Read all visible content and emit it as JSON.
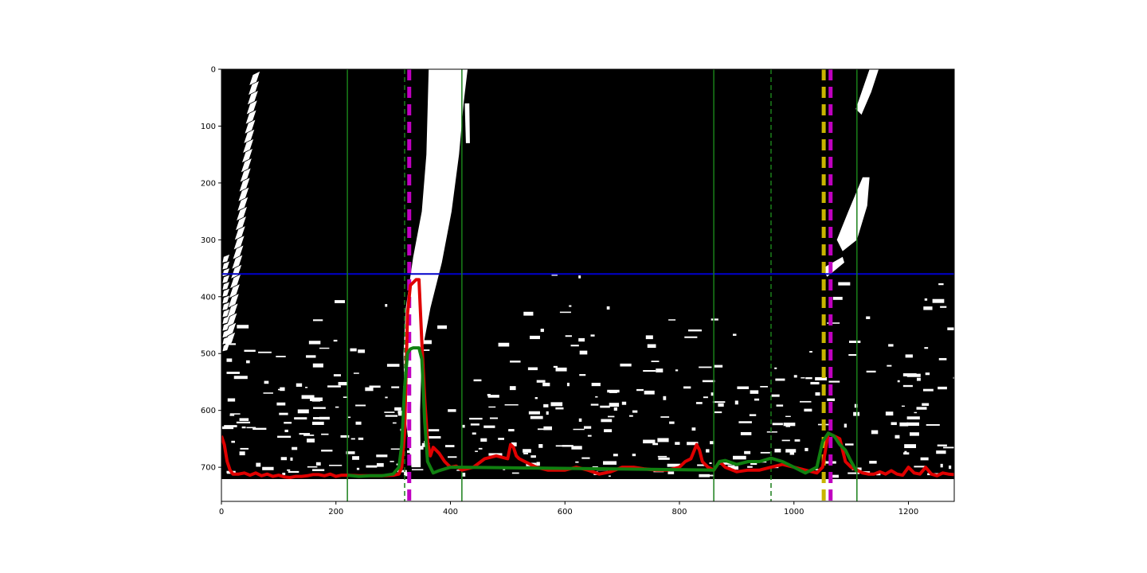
{
  "chart_data": {
    "type": "line",
    "title": "",
    "xlabel": "",
    "ylabel": "",
    "xlim": [
      0,
      1280
    ],
    "ylim": [
      760,
      0
    ],
    "image_extent": {
      "x": [
        0,
        1280
      ],
      "y": [
        720,
        0
      ]
    },
    "xticks": [
      0,
      200,
      400,
      600,
      800,
      1000,
      1200
    ],
    "yticks": [
      0,
      100,
      200,
      300,
      400,
      500,
      600,
      700
    ],
    "background": "binary lane-line threshold image (white pixels on black)",
    "horizontal_line": {
      "y": 360,
      "color": "#0000cc"
    },
    "vertical_lines_solid": {
      "x": [
        220,
        420,
        860,
        1110
      ],
      "color": "#1a7f1a"
    },
    "vertical_lines_dashed_thin": {
      "x": [
        320,
        960
      ],
      "color": "#1a7f1a"
    },
    "vertical_lines_dashed_thick": [
      {
        "x": 328,
        "color": "#c000c0"
      },
      {
        "x": 1052,
        "color": "#c8b400"
      },
      {
        "x": 1064,
        "color": "#c000c0"
      }
    ],
    "series": [
      {
        "color": "#e00000",
        "x": [
          0,
          5,
          10,
          15,
          20,
          30,
          40,
          50,
          60,
          70,
          80,
          90,
          100,
          110,
          120,
          130,
          140,
          150,
          160,
          170,
          180,
          190,
          200,
          210,
          220,
          240,
          260,
          280,
          300,
          310,
          315,
          320,
          325,
          330,
          340,
          345,
          350,
          355,
          360,
          365,
          370,
          375,
          380,
          390,
          400,
          410,
          420,
          440,
          460,
          480,
          500,
          505,
          510,
          515,
          520,
          530,
          550,
          570,
          600,
          620,
          640,
          660,
          680,
          700,
          720,
          740,
          760,
          780,
          800,
          810,
          820,
          830,
          835,
          840,
          850,
          860,
          870,
          880,
          900,
          920,
          940,
          960,
          980,
          1000,
          1020,
          1040,
          1050,
          1060,
          1070,
          1080,
          1090,
          1100,
          1110,
          1120,
          1130,
          1140,
          1150,
          1160,
          1170,
          1180,
          1190,
          1200,
          1210,
          1220,
          1230,
          1240,
          1250,
          1260,
          1270,
          1280
        ],
        "y": [
          645,
          660,
          690,
          705,
          712,
          712,
          710,
          714,
          710,
          715,
          712,
          716,
          714,
          717,
          718,
          716,
          716,
          715,
          713,
          713,
          715,
          712,
          716,
          714,
          714,
          715,
          715,
          715,
          714,
          712,
          700,
          640,
          430,
          380,
          370,
          370,
          480,
          580,
          655,
          680,
          665,
          670,
          675,
          690,
          700,
          698,
          705,
          700,
          685,
          680,
          685,
          660,
          665,
          680,
          685,
          690,
          700,
          705,
          705,
          700,
          705,
          712,
          708,
          700,
          700,
          703,
          705,
          705,
          700,
          690,
          685,
          660,
          670,
          690,
          700,
          705,
          690,
          700,
          708,
          705,
          705,
          700,
          695,
          700,
          705,
          710,
          700,
          640,
          645,
          650,
          690,
          700,
          705,
          710,
          712,
          712,
          708,
          712,
          706,
          712,
          714,
          700,
          710,
          712,
          700,
          712,
          715,
          710,
          712,
          713
        ]
      },
      {
        "color": "#108010",
        "x": [
          220,
          240,
          260,
          280,
          300,
          310,
          315,
          320,
          325,
          330,
          335,
          340,
          345,
          350,
          355,
          360,
          370,
          380,
          400,
          420,
          860,
          870,
          880,
          900,
          920,
          940,
          960,
          980,
          1000,
          1020,
          1040,
          1050,
          1060,
          1070,
          1080,
          1090,
          1100,
          1110
        ],
        "y": [
          714,
          716,
          715,
          715,
          712,
          700,
          660,
          560,
          500,
          492,
          490,
          490,
          490,
          510,
          620,
          690,
          710,
          706,
          700,
          700,
          705,
          690,
          688,
          695,
          690,
          690,
          684,
          690,
          700,
          710,
          700,
          655,
          640,
          645,
          660,
          670,
          690,
          708
        ]
      }
    ]
  }
}
